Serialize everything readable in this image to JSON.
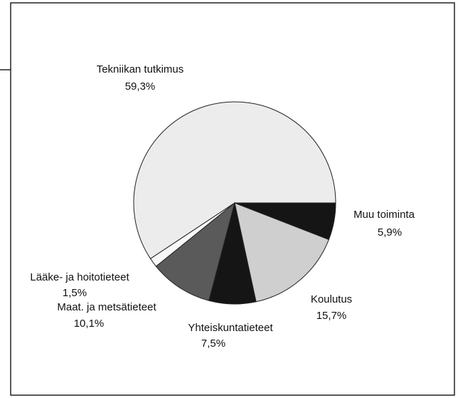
{
  "chart_data": {
    "type": "pie",
    "categories": [
      "Tekniikan tutkimus",
      "Lääke- ja hoitotieteet",
      "Maat. ja metsätieteet",
      "Yhteiskuntatieteet",
      "Koulutus",
      "Muu toiminta"
    ],
    "values": [
      59.3,
      1.5,
      10.1,
      7.5,
      15.7,
      5.9
    ],
    "value_labels": [
      "59,3%",
      "1,5%",
      "10,1%",
      "7,5%",
      "15,7%",
      "5,9%"
    ],
    "colors": [
      "#ececec",
      "#f8f8f8",
      "#5a5a5a",
      "#151515",
      "#cfcfcf",
      "#151515"
    ]
  }
}
